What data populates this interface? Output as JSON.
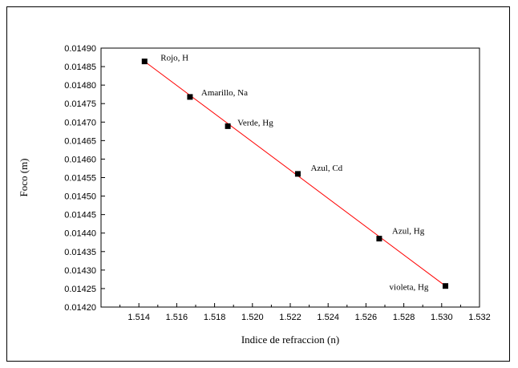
{
  "chart_data": {
    "type": "scatter",
    "title": "",
    "xlabel": "Indice de refraccion  (n)",
    "ylabel": "Foco (m)",
    "xlim": [
      1.512,
      1.532
    ],
    "ylim": [
      0.0142,
      0.0149
    ],
    "x_ticks": [
      "1.514",
      "1.516",
      "1.518",
      "1.520",
      "1.522",
      "1.524",
      "1.526",
      "1.528",
      "1.530",
      "1.532"
    ],
    "y_ticks": [
      "0.01420",
      "0.01425",
      "0.01430",
      "0.01435",
      "0.01440",
      "0.01445",
      "0.01450",
      "0.01455",
      "0.01460",
      "0.01465",
      "0.01470",
      "0.01475",
      "0.01480",
      "0.01485",
      "0.01490"
    ],
    "grid": false,
    "marker_color": "#000000",
    "line_color": "#ff0000",
    "points": [
      {
        "x": 1.5143,
        "y": 0.014864,
        "label": "Rojo, H"
      },
      {
        "x": 1.5167,
        "y": 0.014768,
        "label": "Amarillo, Na"
      },
      {
        "x": 1.5187,
        "y": 0.014689,
        "label": "Verde, Hg"
      },
      {
        "x": 1.5224,
        "y": 0.01456,
        "label": "Azul, Cd"
      },
      {
        "x": 1.5267,
        "y": 0.014385,
        "label": "Azul, Hg"
      },
      {
        "x": 1.5302,
        "y": 0.014257,
        "label": "violeta, Hg"
      }
    ],
    "fit_line": {
      "x": [
        1.5143,
        1.5302
      ],
      "y": [
        0.014864,
        0.014257
      ]
    }
  }
}
